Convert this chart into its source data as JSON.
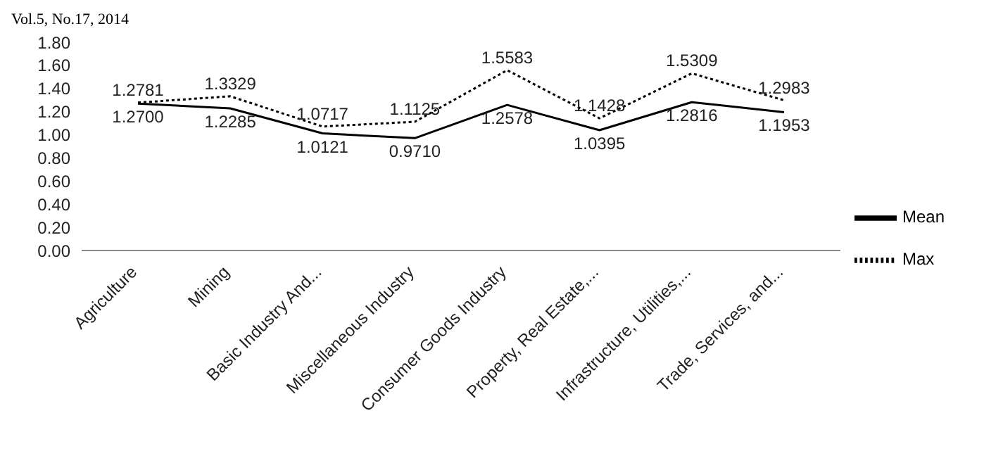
{
  "chart_data": {
    "type": "line",
    "annotations": [
      "Vol.5, No.17, 2014"
    ],
    "categories": [
      "Agriculture",
      "Mining",
      "Basic Industry And...",
      "Miscellaneous Industry",
      "Consumer Goods Industry",
      "Property, Real Estate,...",
      "Infrastructure, Utilities,...",
      "Trade, Services, and..."
    ],
    "series": [
      {
        "name": "Mean",
        "color": "#000000",
        "line_style": "solid",
        "values": [
          1.27,
          1.2285,
          1.0121,
          0.971,
          1.2578,
          1.0395,
          1.2816,
          1.1953
        ],
        "value_labels": [
          "1.2700",
          "1.2285",
          "1.0121",
          "0.9710",
          "1.2578",
          "1.0395",
          "1.2816",
          "1.1953"
        ]
      },
      {
        "name": "Max",
        "color": "#000000",
        "line_style": "dotted",
        "values": [
          1.2781,
          1.3329,
          1.0717,
          1.1125,
          1.5583,
          1.1428,
          1.5309,
          1.2983
        ],
        "value_labels": [
          "1.2781",
          "1.3329",
          "1.0717",
          "1.1125",
          "1.5583",
          "1.1428",
          "1.5309",
          "1.2983"
        ]
      }
    ],
    "ylim": [
      0,
      1.8
    ],
    "yticks": [
      {
        "value": 0,
        "label": "0.00"
      },
      {
        "value": 0.2,
        "label": "0.20"
      },
      {
        "value": 0.4,
        "label": "0.40"
      },
      {
        "value": 0.6,
        "label": "0.60"
      },
      {
        "value": 0.8,
        "label": "0.80"
      },
      {
        "value": 1.0,
        "label": "1.00"
      },
      {
        "value": 1.2,
        "label": "1.20"
      },
      {
        "value": 1.4,
        "label": "1.40"
      },
      {
        "value": 1.6,
        "label": "1.60"
      },
      {
        "value": 1.8,
        "label": "1.80"
      }
    ],
    "grid": false,
    "legend": "right",
    "marker": "none"
  }
}
